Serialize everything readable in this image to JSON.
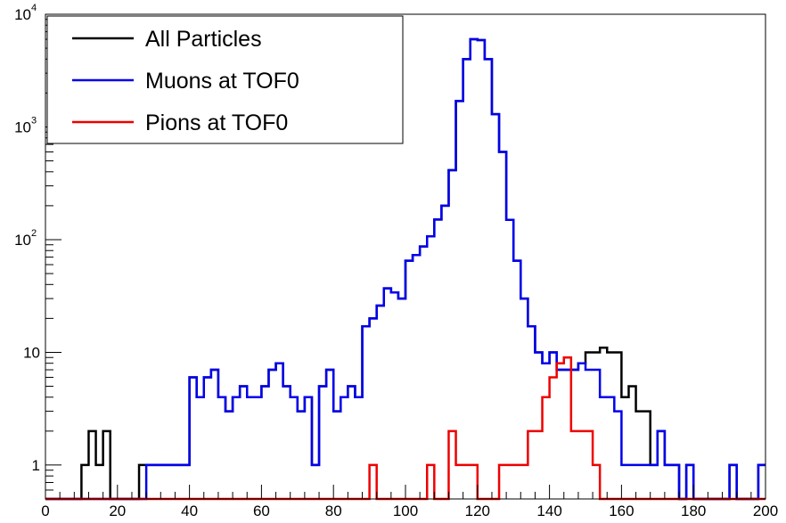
{
  "chart_data": {
    "type": "line",
    "subtype": "step-histogram",
    "title": "",
    "xlabel": "",
    "ylabel": "",
    "xlim": [
      0,
      200
    ],
    "ylim": [
      0.5,
      10000
    ],
    "yscale": "log",
    "bin_width": 2,
    "x_ticks": [
      "0",
      "20",
      "40",
      "60",
      "80",
      "100",
      "120",
      "140",
      "160",
      "180",
      "200"
    ],
    "y_ticks": [
      {
        "value": 1,
        "label": "1",
        "sup": ""
      },
      {
        "value": 10,
        "label": "10",
        "sup": ""
      },
      {
        "value": 100,
        "label": "10",
        "sup": "2"
      },
      {
        "value": 1000,
        "label": "10",
        "sup": "3"
      },
      {
        "value": 10000,
        "label": "10",
        "sup": "4"
      }
    ],
    "legend_position": "top-left",
    "series": [
      {
        "name": "All Particles",
        "color": "#000000",
        "values": [
          0,
          0,
          0,
          0,
          0,
          1,
          2,
          1,
          2,
          0,
          0,
          0,
          0,
          1,
          1,
          1,
          1,
          1,
          1,
          1,
          6,
          4,
          6,
          7,
          4,
          3,
          4,
          5,
          4,
          4,
          5,
          7,
          8,
          5,
          4,
          3,
          4,
          1,
          5,
          7,
          3,
          4,
          5,
          4,
          17,
          20,
          26,
          37,
          34,
          30,
          65,
          73,
          87,
          107,
          151,
          200,
          413,
          1700,
          4000,
          6000,
          5900,
          4000,
          1300,
          600,
          150,
          65,
          30,
          17,
          10,
          8,
          10,
          7,
          7,
          7,
          8,
          10,
          10,
          11,
          10,
          10,
          4,
          5,
          3,
          3,
          1,
          2,
          1,
          1,
          0,
          1,
          0,
          0,
          0,
          0,
          0,
          1,
          0,
          0,
          0,
          1
        ]
      },
      {
        "name": "Muons at TOF0",
        "color": "#0000ee",
        "values": [
          0,
          0,
          0,
          0,
          0,
          0,
          0,
          0,
          0,
          0,
          0,
          0,
          0,
          0,
          1,
          1,
          1,
          1,
          1,
          1,
          6,
          4,
          6,
          7,
          4,
          3,
          4,
          5,
          4,
          4,
          5,
          7,
          8,
          5,
          4,
          3,
          4,
          1,
          5,
          7,
          3,
          4,
          5,
          4,
          17,
          20,
          26,
          37,
          34,
          30,
          65,
          73,
          87,
          107,
          151,
          200,
          413,
          1700,
          4000,
          6000,
          5900,
          4000,
          1300,
          600,
          150,
          65,
          30,
          17,
          10,
          8,
          10,
          7,
          7,
          7,
          8,
          7,
          7,
          4,
          4,
          3,
          1,
          1,
          1,
          1,
          1,
          2,
          1,
          1,
          0,
          1,
          0,
          0,
          0,
          0,
          0,
          1,
          0,
          0,
          0,
          1
        ]
      },
      {
        "name": "Pions at TOF0",
        "color": "#ee0000",
        "values": [
          0,
          0,
          0,
          0,
          0,
          0,
          0,
          0,
          0,
          0,
          0,
          0,
          0,
          0,
          0,
          0,
          0,
          0,
          0,
          0,
          0,
          0,
          0,
          0,
          0,
          0,
          0,
          0,
          0,
          0,
          0,
          0,
          0,
          0,
          0,
          0,
          0,
          0,
          0,
          0,
          0,
          0,
          0,
          0,
          0,
          1,
          0,
          0,
          0,
          0,
          0,
          0,
          0,
          1,
          0,
          0,
          2,
          1,
          1,
          1,
          0,
          0,
          0,
          1,
          1,
          1,
          1,
          2,
          2,
          4,
          6,
          8,
          9,
          2,
          2,
          2,
          1,
          0,
          0,
          0,
          0,
          0,
          0,
          0,
          0,
          0,
          0,
          0,
          0,
          0,
          0,
          0,
          0,
          0,
          0,
          0,
          0,
          0,
          0,
          0
        ]
      }
    ]
  }
}
